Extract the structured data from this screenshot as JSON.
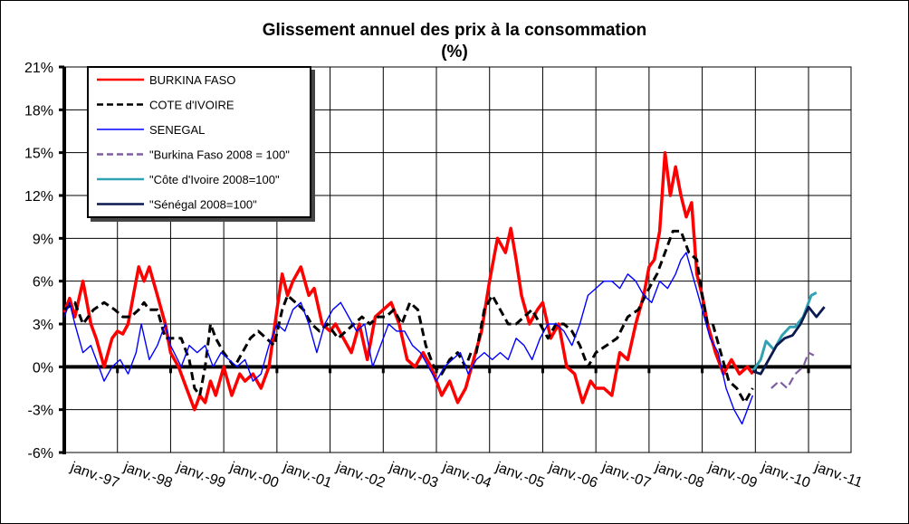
{
  "chart_data": {
    "type": "line",
    "title": "Glissement annuel des prix à la consommation",
    "subtitle": "(%)",
    "ylim": [
      -6,
      21
    ],
    "y_ticks": [
      "21%",
      "18%",
      "15%",
      "12%",
      "9%",
      "6%",
      "3%",
      "0%",
      "-3%",
      "-6%"
    ],
    "y_tick_values": [
      21,
      18,
      15,
      12,
      9,
      6,
      3,
      0,
      -3,
      -6
    ],
    "xlim": [
      1997,
      2011.8
    ],
    "x_ticks": [
      "janv.-97",
      "janv.-98",
      "janv.-99",
      "janv.-00",
      "janv.-01",
      "janv.-02",
      "janv.-03",
      "janv.-04",
      "janv.-05",
      "janv.-06",
      "janv.-07",
      "janv.-08",
      "janv.-09",
      "janv.-10",
      "janv.-11"
    ],
    "x_tick_values": [
      1997,
      1998,
      1999,
      2000,
      2001,
      2002,
      2003,
      2004,
      2005,
      2006,
      2007,
      2008,
      2009,
      2010,
      2011
    ],
    "grid": true,
    "legend_position": "top-left",
    "series": [
      {
        "name": "BURKINA FASO",
        "color": "#ff0000",
        "dash": "solid",
        "x": [
          1997.0,
          1997.1,
          1997.2,
          1997.35,
          1997.5,
          1997.6,
          1997.75,
          1997.9,
          1998.0,
          1998.1,
          1998.2,
          1998.3,
          1998.4,
          1998.5,
          1998.6,
          1998.75,
          1998.9,
          1999.0,
          1999.15,
          1999.3,
          1999.45,
          1999.55,
          1999.65,
          1999.75,
          1999.85,
          2000.0,
          2000.15,
          2000.3,
          2000.4,
          2000.55,
          2000.7,
          2000.85,
          2001.0,
          2001.1,
          2001.2,
          2001.3,
          2001.45,
          2001.6,
          2001.7,
          2001.85,
          2002.0,
          2002.1,
          2002.25,
          2002.4,
          2002.55,
          2002.7,
          2002.85,
          2003.0,
          2003.15,
          2003.3,
          2003.45,
          2003.6,
          2003.75,
          2003.9,
          2004.0,
          2004.1,
          2004.25,
          2004.4,
          2004.55,
          2004.7,
          2004.85,
          2005.0,
          2005.15,
          2005.3,
          2005.4,
          2005.5,
          2005.6,
          2005.75,
          2005.9,
          2006.0,
          2006.15,
          2006.3,
          2006.45,
          2006.6,
          2006.75,
          2006.9,
          2007.0,
          2007.15,
          2007.3,
          2007.45,
          2007.6,
          2007.75,
          2007.9,
          2008.0,
          2008.1,
          2008.2,
          2008.3,
          2008.4,
          2008.5,
          2008.6,
          2008.7,
          2008.8,
          2008.9,
          2009.0,
          2009.1,
          2009.25,
          2009.4,
          2009.55,
          2009.7,
          2009.85,
          2009.95
        ],
        "values": [
          3.8,
          4.8,
          3.5,
          6.0,
          3.0,
          2.0,
          0.0,
          2.0,
          2.5,
          2.3,
          3.0,
          5.0,
          7.0,
          6.0,
          7.0,
          5.0,
          3.0,
          1.0,
          0.0,
          -1.5,
          -3.0,
          -2.0,
          -2.5,
          -1.0,
          -2.0,
          0.0,
          -2.0,
          -0.5,
          -1.0,
          -0.5,
          -1.5,
          0.0,
          4.0,
          6.5,
          5.0,
          6.0,
          7.0,
          5.0,
          5.5,
          3.0,
          2.5,
          3.0,
          2.0,
          1.0,
          3.0,
          0.5,
          3.5,
          4.0,
          4.5,
          3.0,
          0.5,
          0.0,
          1.0,
          0.0,
          -1.0,
          -2.0,
          -1.0,
          -2.5,
          -1.5,
          0.5,
          2.5,
          6.0,
          9.0,
          8.0,
          9.7,
          7.5,
          5.0,
          3.0,
          4.0,
          4.5,
          2.0,
          3.0,
          0.0,
          -0.5,
          -2.5,
          -1.0,
          -1.5,
          -1.5,
          -2.0,
          1.0,
          0.5,
          3.0,
          5.0,
          7.0,
          7.5,
          9.5,
          15.0,
          12.0,
          14.0,
          12.0,
          10.5,
          11.5,
          6.5,
          5.0,
          3.0,
          1.0,
          -0.5,
          0.5,
          -0.5,
          0.0,
          -0.5
        ]
      },
      {
        "name": "COTE d'IVOIRE",
        "color": "#000000",
        "dash": "dashed",
        "x": [
          1997.0,
          1997.2,
          1997.35,
          1997.55,
          1997.75,
          1997.95,
          1998.1,
          1998.25,
          1998.4,
          1998.5,
          1998.6,
          1998.75,
          1998.9,
          1999.05,
          1999.2,
          1999.35,
          1999.45,
          1999.55,
          1999.65,
          1999.75,
          1999.85,
          2000.0,
          2000.2,
          2000.35,
          2000.5,
          2000.65,
          2000.8,
          2000.95,
          2001.1,
          2001.2,
          2001.35,
          2001.5,
          2001.65,
          2001.8,
          2001.95,
          2002.15,
          2002.3,
          2002.45,
          2002.6,
          2002.75,
          2002.9,
          2003.05,
          2003.2,
          2003.35,
          2003.5,
          2003.65,
          2003.8,
          2003.95,
          2004.1,
          2004.25,
          2004.4,
          2004.55,
          2004.65,
          2004.75,
          2004.9,
          2005.05,
          2005.2,
          2005.35,
          2005.5,
          2005.65,
          2005.8,
          2005.95,
          2006.1,
          2006.25,
          2006.4,
          2006.55,
          2006.7,
          2006.85,
          2007.0,
          2007.2,
          2007.4,
          2007.6,
          2007.8,
          2008.0,
          2008.15,
          2008.3,
          2008.45,
          2008.6,
          2008.75,
          2008.9,
          2009.0,
          2009.1,
          2009.2,
          2009.35,
          2009.5,
          2009.65,
          2009.8,
          2009.95
        ],
        "values": [
          4.0,
          4.5,
          3.0,
          4.0,
          4.5,
          4.0,
          3.5,
          3.5,
          4.0,
          4.5,
          4.0,
          4.0,
          2.0,
          2.0,
          2.0,
          0.5,
          -1.5,
          -2.0,
          0.0,
          3.0,
          2.0,
          1.0,
          0.0,
          1.0,
          2.0,
          2.5,
          2.0,
          1.5,
          4.0,
          5.0,
          4.5,
          4.0,
          3.0,
          2.5,
          3.0,
          2.0,
          2.5,
          3.0,
          3.5,
          3.0,
          3.5,
          3.5,
          4.0,
          3.0,
          4.5,
          4.0,
          1.5,
          0.0,
          -0.5,
          0.5,
          1.0,
          0.0,
          1.0,
          1.0,
          4.0,
          5.0,
          4.0,
          3.0,
          3.0,
          3.5,
          4.0,
          3.0,
          2.0,
          3.0,
          3.0,
          2.5,
          1.5,
          0.0,
          1.0,
          1.5,
          2.0,
          3.5,
          4.0,
          5.5,
          6.5,
          8.0,
          9.5,
          9.5,
          8.0,
          7.5,
          5.0,
          3.0,
          3.0,
          1.0,
          -1.0,
          -1.5,
          -2.5,
          -1.5
        ]
      },
      {
        "name": "SENEGAL",
        "color": "#0000ff",
        "dash": "solid",
        "x": [
          1997.0,
          1997.1,
          1997.2,
          1997.35,
          1997.5,
          1997.65,
          1997.75,
          1997.9,
          1998.05,
          1998.2,
          1998.35,
          1998.45,
          1998.6,
          1998.75,
          1998.9,
          1999.0,
          1999.2,
          1999.35,
          1999.5,
          1999.65,
          1999.8,
          1999.95,
          2000.1,
          2000.25,
          2000.4,
          2000.55,
          2000.7,
          2000.85,
          2001.0,
          2001.15,
          2001.3,
          2001.45,
          2001.6,
          2001.75,
          2001.9,
          2002.05,
          2002.2,
          2002.35,
          2002.5,
          2002.65,
          2002.8,
          2002.95,
          2003.1,
          2003.25,
          2003.4,
          2003.55,
          2003.7,
          2003.85,
          2004.0,
          2004.15,
          2004.3,
          2004.45,
          2004.6,
          2004.75,
          2004.9,
          2005.05,
          2005.2,
          2005.35,
          2005.5,
          2005.65,
          2005.8,
          2005.95,
          2006.1,
          2006.25,
          2006.4,
          2006.55,
          2006.7,
          2006.85,
          2007.0,
          2007.15,
          2007.3,
          2007.45,
          2007.6,
          2007.75,
          2007.9,
          2008.05,
          2008.2,
          2008.35,
          2008.5,
          2008.6,
          2008.7,
          2008.85,
          2009.0,
          2009.15,
          2009.3,
          2009.45,
          2009.6,
          2009.75,
          2009.95
        ],
        "values": [
          3.5,
          4.5,
          3.0,
          1.0,
          1.5,
          0.0,
          -1.0,
          0.0,
          0.5,
          -0.5,
          1.0,
          3.0,
          0.5,
          1.5,
          3.0,
          1.5,
          0.0,
          1.5,
          1.0,
          1.5,
          0.0,
          1.0,
          0.5,
          0.0,
          0.5,
          -1.0,
          -0.5,
          1.5,
          3.0,
          2.5,
          4.0,
          4.5,
          3.0,
          1.0,
          3.0,
          4.0,
          4.5,
          3.5,
          2.5,
          3.0,
          0.0,
          1.5,
          3.0,
          2.5,
          2.5,
          1.5,
          1.0,
          0.0,
          -1.0,
          0.0,
          0.5,
          1.0,
          -0.5,
          0.5,
          1.0,
          0.5,
          1.0,
          0.5,
          2.0,
          1.5,
          0.5,
          2.0,
          3.0,
          3.0,
          2.5,
          1.5,
          3.0,
          5.0,
          5.5,
          6.0,
          6.0,
          5.5,
          6.5,
          6.0,
          5.0,
          4.5,
          6.0,
          5.5,
          6.5,
          7.5,
          8.0,
          6.0,
          4.0,
          2.0,
          1.0,
          -1.5,
          -3.0,
          -4.0,
          -2.0
        ]
      },
      {
        "name": "\"Burkina Faso 2008 = 100\"",
        "color": "#7f5fa0",
        "dash": "dashed",
        "x": [
          2010.3,
          2010.45,
          2010.6,
          2010.75,
          2010.9,
          2011.0,
          2011.1
        ],
        "values": [
          -1.5,
          -1.0,
          -1.5,
          -0.5,
          0.0,
          1.0,
          0.8
        ]
      },
      {
        "name": "\"Côte d'Ivoire 2008=100\"",
        "color": "#31a2b3",
        "dash": "solid",
        "x": [
          2009.95,
          2010.1,
          2010.2,
          2010.35,
          2010.5,
          2010.65,
          2010.75,
          2010.9,
          2011.05,
          2011.15
        ],
        "values": [
          -0.3,
          0.5,
          1.8,
          1.2,
          2.2,
          2.8,
          2.8,
          3.5,
          5.0,
          5.2
        ]
      },
      {
        "name": "\"Sénégal 2008=100\"",
        "color": "#0a1a50",
        "dash": "solid",
        "x": [
          2009.95,
          2010.1,
          2010.25,
          2010.4,
          2010.55,
          2010.7,
          2010.85,
          2011.0,
          2011.15,
          2011.3
        ],
        "values": [
          -0.3,
          -0.5,
          0.5,
          1.5,
          2.0,
          2.2,
          3.0,
          4.2,
          3.5,
          4.2
        ]
      }
    ]
  }
}
